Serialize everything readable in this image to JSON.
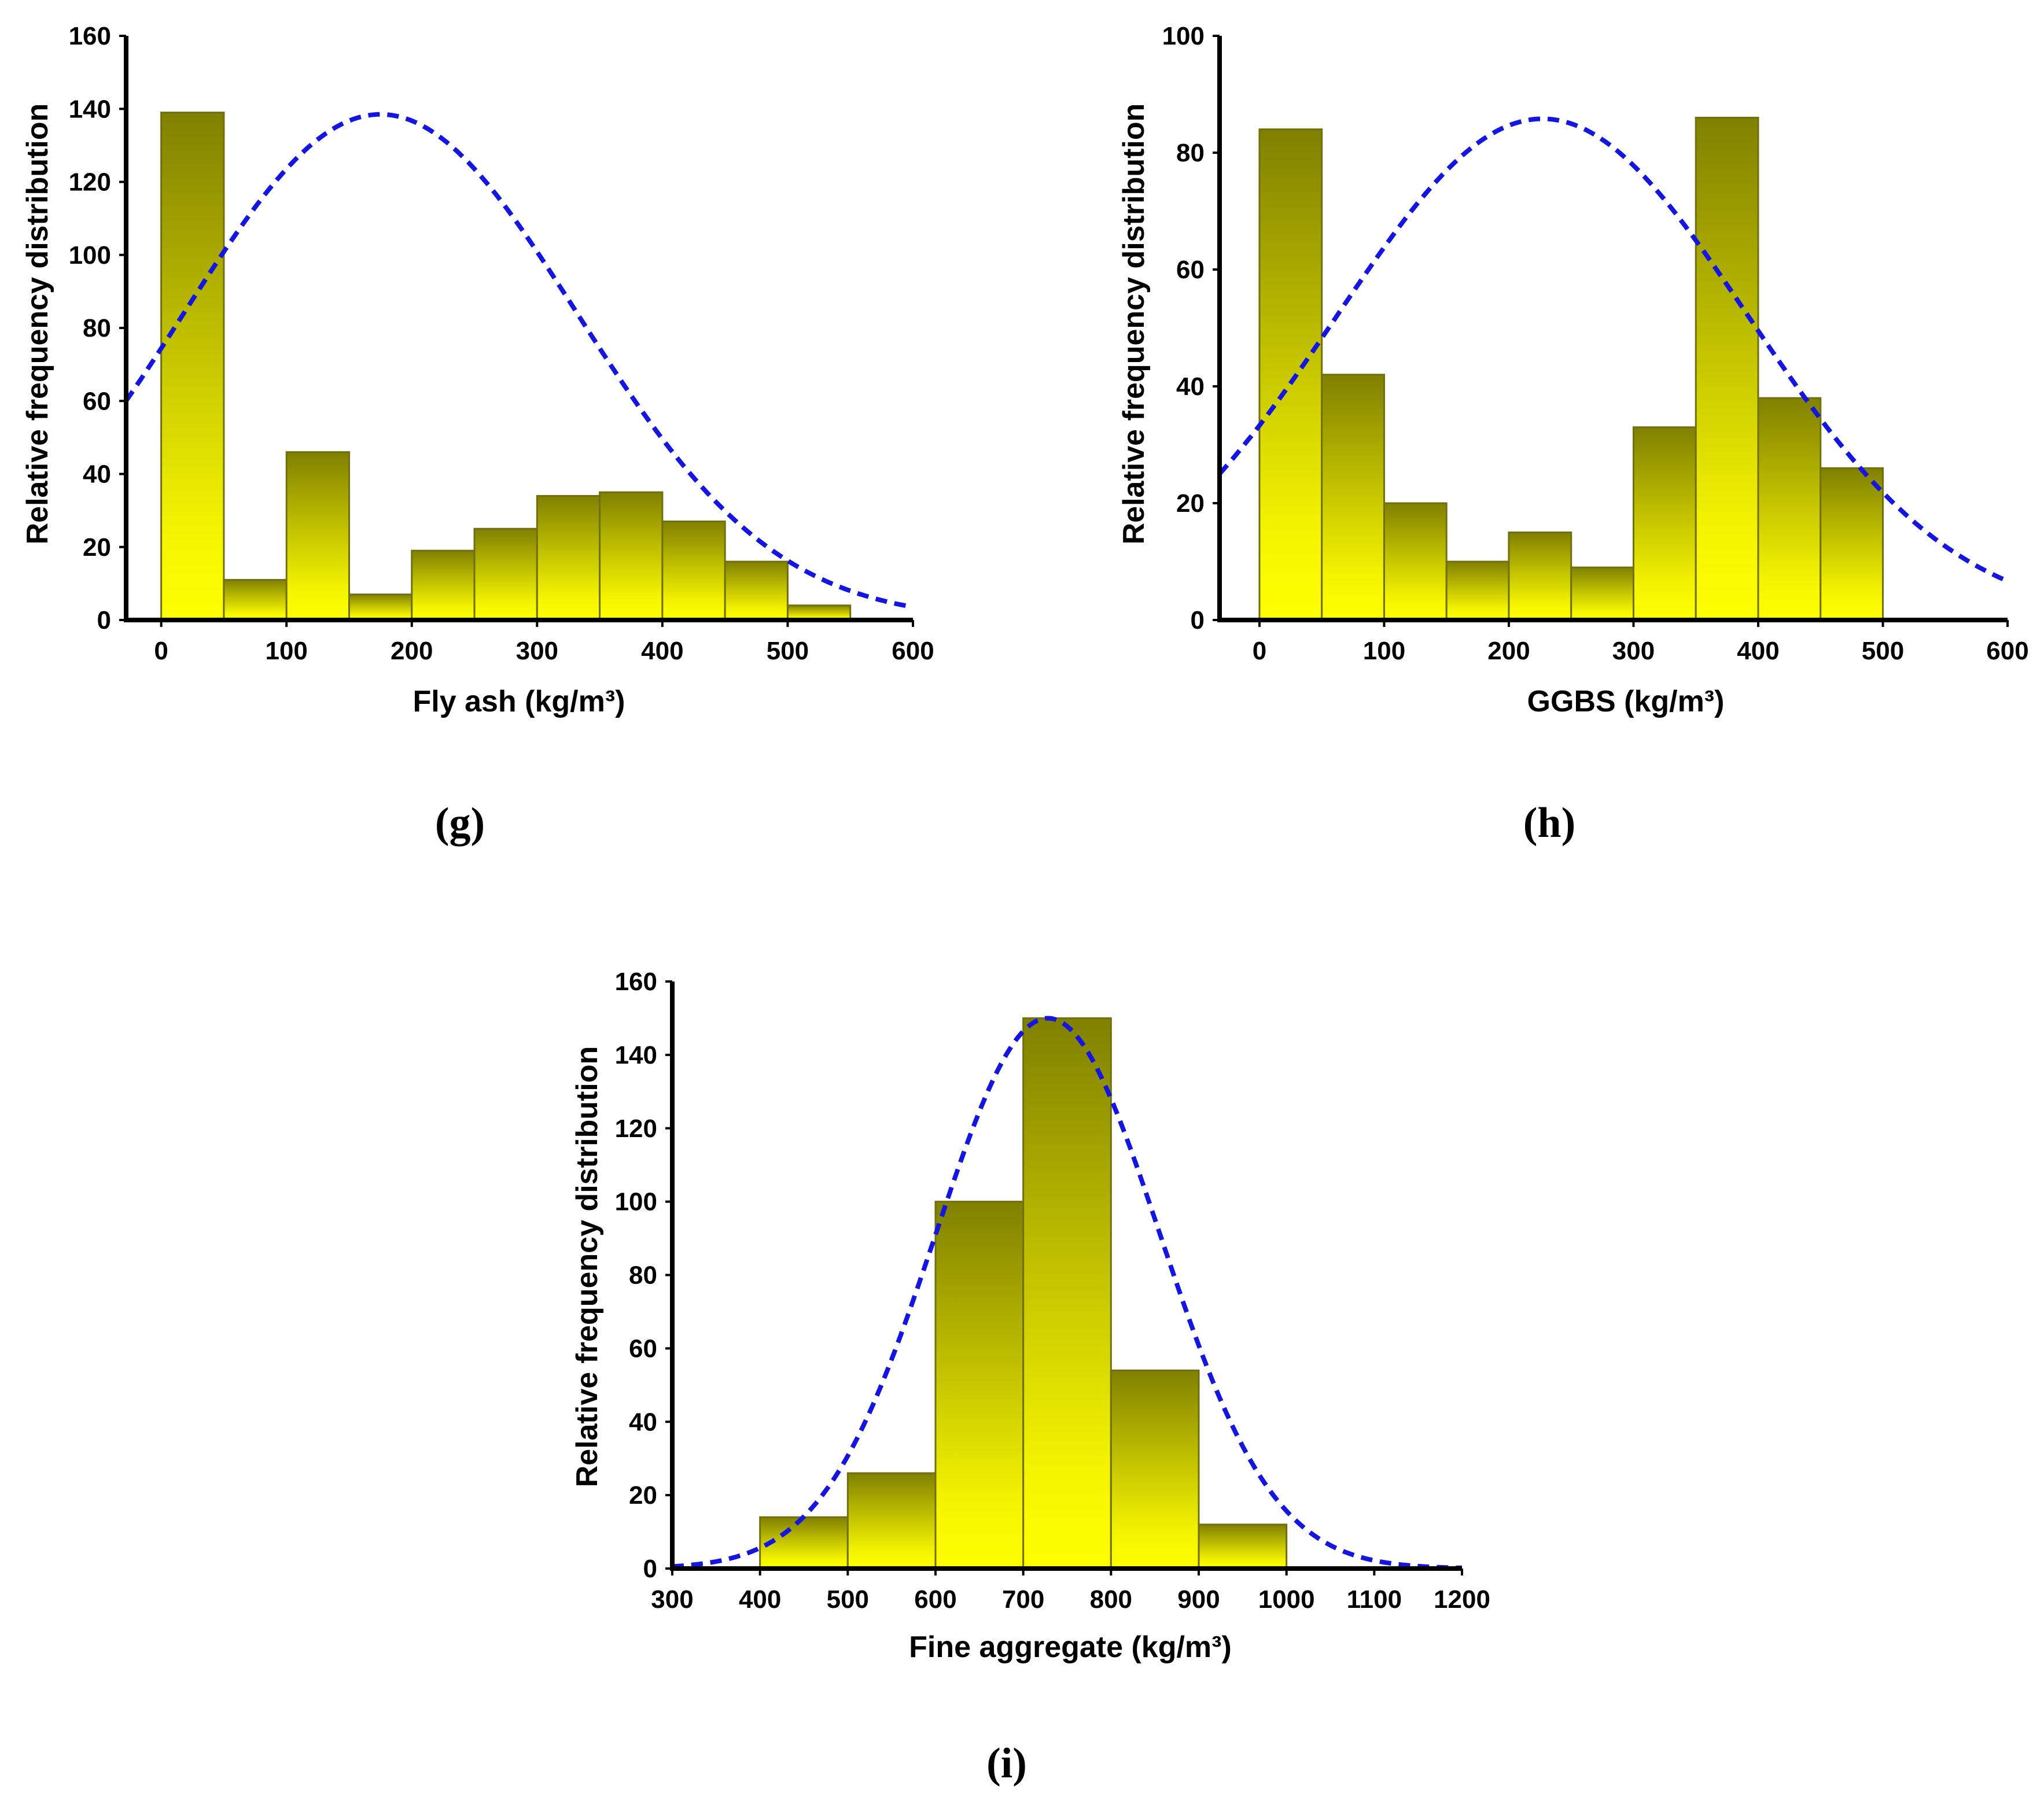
{
  "chart_data": [
    {
      "type": "bar",
      "panel_label": "(g)",
      "xlabel": "Fly ash (kg/m³)",
      "ylabel": "Relative frequency distribution",
      "xlim": [
        -28,
        600
      ],
      "ylim": [
        0,
        160
      ],
      "xticks": [
        0,
        100,
        200,
        300,
        400,
        500,
        600
      ],
      "yticks": [
        0,
        20,
        40,
        60,
        80,
        100,
        120,
        140,
        160
      ],
      "bin_width": 50,
      "bins": [
        {
          "start": 0,
          "value": 139
        },
        {
          "start": 50,
          "value": 11
        },
        {
          "start": 100,
          "value": 46
        },
        {
          "start": 150,
          "value": 7
        },
        {
          "start": 200,
          "value": 19
        },
        {
          "start": 250,
          "value": 25
        },
        {
          "start": 300,
          "value": 34
        },
        {
          "start": 350,
          "value": 35
        },
        {
          "start": 400,
          "value": 27
        },
        {
          "start": 450,
          "value": 16
        },
        {
          "start": 500,
          "value": 4
        }
      ],
      "normal_fit": {
        "mean": 175,
        "sd": 157,
        "peak": 138.5,
        "style": "dashed"
      }
    },
    {
      "type": "bar",
      "panel_label": "(h)",
      "xlabel": "GGBS (kg/m³)",
      "ylabel": "Relative frequency distribution",
      "xlim": [
        -32,
        600
      ],
      "ylim": [
        0,
        100
      ],
      "xticks": [
        0,
        100,
        200,
        300,
        400,
        500,
        600
      ],
      "yticks": [
        0,
        20,
        40,
        60,
        80,
        100
      ],
      "bin_width": 50,
      "bins": [
        {
          "start": 0,
          "value": 84
        },
        {
          "start": 50,
          "value": 42
        },
        {
          "start": 100,
          "value": 20
        },
        {
          "start": 150,
          "value": 10
        },
        {
          "start": 200,
          "value": 15
        },
        {
          "start": 250,
          "value": 9
        },
        {
          "start": 300,
          "value": 33
        },
        {
          "start": 350,
          "value": 86
        },
        {
          "start": 400,
          "value": 38
        },
        {
          "start": 450,
          "value": 26
        }
      ],
      "normal_fit": {
        "mean": 227,
        "sd": 165,
        "peak": 85.8,
        "style": "dashed"
      }
    },
    {
      "type": "bar",
      "panel_label": "(i)",
      "xlabel": "Fine aggregate (kg/m³)",
      "ylabel": "Relative frequency distribution",
      "xlim": [
        300,
        1200
      ],
      "ylim": [
        0,
        160
      ],
      "xticks": [
        300,
        400,
        500,
        600,
        700,
        800,
        900,
        1000,
        1100,
        1200
      ],
      "yticks": [
        0,
        20,
        40,
        60,
        80,
        100,
        120,
        140,
        160
      ],
      "bin_width": 100,
      "bins": [
        {
          "start": 400,
          "value": 14
        },
        {
          "start": 500,
          "value": 26
        },
        {
          "start": 600,
          "value": 100
        },
        {
          "start": 700,
          "value": 150
        },
        {
          "start": 800,
          "value": 54
        },
        {
          "start": 900,
          "value": 12
        }
      ],
      "normal_fit": {
        "mean": 728,
        "sd": 128,
        "peak": 150,
        "style": "dashed"
      }
    }
  ]
}
